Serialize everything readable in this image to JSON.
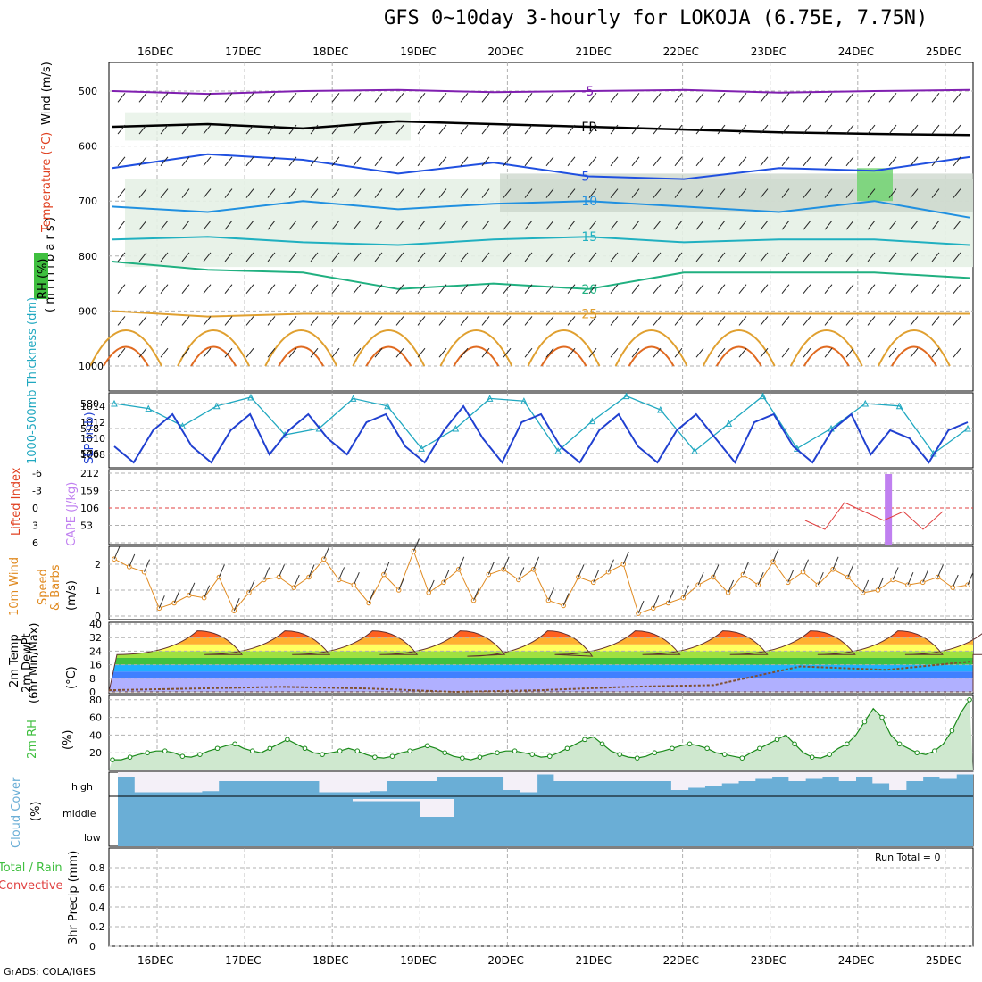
{
  "title": "GFS 0~10day 3-hourly for LOKOJA (6.75E, 7.75N)",
  "footer": "GrADS: COLA/IGES",
  "colors": {
    "grid": "#b0b0b0",
    "rh": "#3fbf3f",
    "temp": "#e04020",
    "thick": "#20a8c0",
    "slp": "#2040d0",
    "wind": "#e08a20",
    "cloud": "#6aaed6"
  },
  "chart_data": [
    {
      "type": "line",
      "name": "pressure-time section",
      "x_dates": [
        "16DEC",
        "17DEC",
        "18DEC",
        "19DEC",
        "20DEC",
        "21DEC",
        "22DEC",
        "23DEC",
        "24DEC",
        "25DEC"
      ],
      "ylabels": [
        "Wind (m/s)",
        "Temperature (°C)",
        "RH (%)",
        "( m i l l i b a r s )"
      ],
      "yticks": [
        500,
        600,
        700,
        800,
        900,
        1000
      ],
      "series": [
        {
          "name": "-5",
          "values": [
            500,
            505,
            500,
            498,
            502,
            500,
            498,
            503,
            500,
            498
          ],
          "label": "-5"
        },
        {
          "name": "FR",
          "values": [
            565,
            560,
            568,
            555,
            560,
            565,
            570,
            575,
            578,
            580
          ],
          "label": "FR"
        },
        {
          "name": "5",
          "values": [
            640,
            615,
            625,
            650,
            630,
            655,
            660,
            640,
            645,
            620
          ],
          "label": "5"
        },
        {
          "name": "10",
          "values": [
            710,
            720,
            700,
            715,
            705,
            700,
            710,
            720,
            700,
            730
          ],
          "label": "10"
        },
        {
          "name": "15",
          "values": [
            770,
            765,
            775,
            780,
            770,
            765,
            775,
            770,
            770,
            780
          ],
          "label": "15"
        },
        {
          "name": "20",
          "values": [
            810,
            825,
            830,
            860,
            850,
            860,
            830,
            830,
            830,
            840
          ],
          "label": "20"
        },
        {
          "name": "25",
          "values": [
            900,
            910,
            905,
            905,
            905,
            905,
            905,
            905,
            905,
            905
          ],
          "label": "25"
        }
      ]
    },
    {
      "type": "line",
      "name": "thickness and SLP",
      "ylabel_left": "1000-500mb Thickness (dm)",
      "ylabel_right": "SLP (mb)",
      "yticks_left": [
        576,
        578,
        580
      ],
      "yticks_right": [
        1008,
        1010,
        1012,
        1014
      ],
      "series": [
        {
          "name": "thickness",
          "values": [
            580.0,
            579.6,
            578.2,
            579.8,
            580.5,
            577.5,
            578.0,
            580.4,
            579.8,
            576.4,
            578.0,
            580.4,
            580.2,
            576.2,
            578.6,
            580.6,
            579.5,
            576.2,
            578.4,
            580.6,
            576.4,
            578.0,
            580.0,
            579.8,
            576.0,
            578.0
          ]
        },
        {
          "name": "slp",
          "values": [
            1009,
            1007,
            1011,
            1013,
            1009,
            1007,
            1011,
            1013,
            1008,
            1011,
            1013,
            1010,
            1008,
            1012,
            1013,
            1009,
            1007,
            1011,
            1014,
            1010,
            1007,
            1012,
            1013,
            1009,
            1007,
            1011,
            1013,
            1009,
            1007,
            1011,
            1013,
            1010,
            1007,
            1012,
            1013,
            1009,
            1007,
            1011,
            1013,
            1008,
            1011,
            1010,
            1007,
            1011,
            1012
          ]
        }
      ]
    },
    {
      "type": "bar",
      "name": "lifted index and CAPE",
      "ylabel_left": "Lifted Index",
      "ylabel_right": "CAPE (J/kg)",
      "yticks_left": [
        "-6",
        "-3",
        "0",
        "3",
        "6"
      ],
      "yticks_right": [
        53,
        106,
        159,
        212
      ],
      "cape_bar": {
        "date_index": 8.35,
        "value": 212
      },
      "lifted_index": [
        1.5,
        2.5,
        -0.5,
        0.5,
        1.5,
        0.5,
        2.5,
        0.5
      ]
    },
    {
      "type": "line",
      "name": "10m wind",
      "ylabel": "10m Wind Speed & Barbs (m/s)",
      "yticks": [
        0,
        1,
        2
      ],
      "values": [
        2.2,
        1.9,
        1.7,
        0.3,
        0.5,
        0.8,
        0.7,
        1.5,
        0.2,
        0.9,
        1.4,
        1.5,
        1.1,
        1.5,
        2.2,
        1.4,
        1.2,
        0.5,
        1.6,
        1.0,
        2.5,
        0.9,
        1.3,
        1.8,
        0.6,
        1.6,
        1.8,
        1.4,
        1.8,
        0.6,
        0.4,
        1.5,
        1.3,
        1.7,
        2.0,
        0.1,
        0.3,
        0.5,
        0.7,
        1.2,
        1.5,
        0.9,
        1.6,
        1.2,
        2.1,
        1.3,
        1.7,
        1.2,
        1.8,
        1.5,
        0.9,
        1.0,
        1.4,
        1.2,
        1.3,
        1.5,
        1.1,
        1.2
      ]
    },
    {
      "type": "area",
      "name": "2m temperature",
      "ylabel": "2m Temp 2m DewPt (6hr Min/Max) (°C)",
      "yticks": [
        0,
        8,
        16,
        24,
        32,
        40
      ],
      "temp_max": [
        36,
        36,
        36,
        36,
        36,
        36,
        36,
        36,
        36,
        36
      ],
      "temp_min": [
        22,
        22,
        22,
        22,
        21,
        22,
        22,
        22,
        22,
        22
      ],
      "dewpt": [
        1,
        2,
        3,
        2,
        0,
        1,
        3,
        4,
        15,
        13,
        18
      ]
    },
    {
      "type": "area",
      "name": "2m RH",
      "ylabel": "2m RH (%)",
      "yticks": [
        20,
        40,
        60,
        80
      ],
      "values": [
        12,
        12,
        15,
        18,
        20,
        22,
        22,
        20,
        16,
        15,
        18,
        22,
        25,
        28,
        30,
        25,
        22,
        20,
        25,
        30,
        35,
        30,
        25,
        20,
        18,
        20,
        22,
        25,
        22,
        18,
        15,
        14,
        16,
        20,
        22,
        25,
        28,
        25,
        20,
        16,
        14,
        12,
        15,
        18,
        20,
        22,
        22,
        20,
        18,
        15,
        16,
        20,
        25,
        30,
        35,
        38,
        30,
        22,
        18,
        15,
        14,
        16,
        20,
        22,
        25,
        28,
        30,
        28,
        25,
        20,
        18,
        16,
        14,
        20,
        25,
        30,
        35,
        40,
        30,
        20,
        15,
        14,
        18,
        25,
        30,
        40,
        55,
        70,
        60,
        40,
        30,
        25,
        20,
        18,
        22,
        30,
        45,
        65,
        80
      ]
    },
    {
      "type": "bar",
      "name": "cloud cover",
      "ylabel": "Cloud Cover (%)",
      "levels": [
        "high",
        "middle",
        "low"
      ],
      "high": [
        80,
        10,
        10,
        10,
        10,
        15,
        60,
        60,
        60,
        60,
        60,
        60,
        10,
        10,
        10,
        15,
        60,
        60,
        60,
        80,
        80,
        80,
        80,
        20,
        10,
        90,
        60,
        60,
        60,
        60,
        60,
        60,
        60,
        20,
        30,
        40,
        50,
        60,
        70,
        80,
        60,
        70,
        80,
        60,
        80,
        50,
        20,
        60,
        80,
        70,
        90
      ],
      "middle": [
        0,
        0,
        0,
        0,
        0,
        0,
        0,
        0,
        0,
        0,
        0,
        0,
        0,
        0,
        10,
        10,
        10,
        10,
        80,
        80,
        0,
        0,
        0,
        0,
        0,
        0,
        0,
        0,
        0,
        0,
        0,
        0,
        0,
        0,
        0,
        0,
        0,
        0,
        0,
        0,
        0,
        0,
        0,
        0,
        0,
        0,
        0,
        0,
        0,
        0,
        0
      ]
    },
    {
      "type": "bar",
      "name": "3hr precip",
      "ylabel": "3hr Precip (mm)",
      "legend": [
        "Total / Rain",
        "Convective"
      ],
      "run_total": "Run Total = 0",
      "yticks": [
        0,
        0.2,
        0.4,
        0.6,
        0.8
      ],
      "ylim": [
        0,
        0.9
      ],
      "values": []
    }
  ]
}
